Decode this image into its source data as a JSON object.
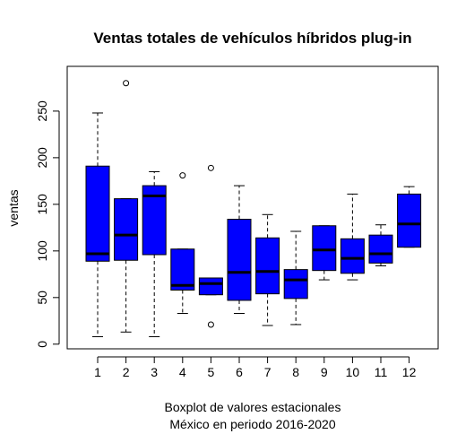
{
  "chart_data": {
    "type": "boxplot",
    "title": "Ventas totales de vehículos híbridos plug-in",
    "ylabel": "ventas",
    "xlabel_lines": [
      "Boxplot de valores estacionales",
      "México en periodo 2016-2020"
    ],
    "categories": [
      "1",
      "2",
      "3",
      "4",
      "5",
      "6",
      "7",
      "8",
      "9",
      "10",
      "11",
      "12"
    ],
    "y_ticks": [
      "0",
      "50",
      "100",
      "150",
      "200",
      "250"
    ],
    "y_tick_values": [
      0,
      50,
      100,
      150,
      200,
      250
    ],
    "ylim": [
      -5,
      298
    ],
    "box_color": "#0000ff",
    "boxes": [
      {
        "lower_whisker": 8,
        "q1": 89,
        "median": 97,
        "q3": 191,
        "upper_whisker": 248,
        "outliers": []
      },
      {
        "lower_whisker": 13,
        "q1": 90,
        "median": 117,
        "q3": 156,
        "upper_whisker": 156,
        "outliers": [
          280
        ]
      },
      {
        "lower_whisker": 8,
        "q1": 96,
        "median": 159,
        "q3": 170,
        "upper_whisker": 185,
        "outliers": []
      },
      {
        "lower_whisker": 33,
        "q1": 58,
        "median": 63,
        "q3": 102,
        "upper_whisker": 102,
        "outliers": [
          181
        ]
      },
      {
        "lower_whisker": 53,
        "q1": 53,
        "median": 65,
        "q3": 71,
        "upper_whisker": 71,
        "outliers": [
          189,
          21
        ]
      },
      {
        "lower_whisker": 33,
        "q1": 47,
        "median": 77,
        "q3": 134,
        "upper_whisker": 170,
        "outliers": []
      },
      {
        "lower_whisker": 20,
        "q1": 54,
        "median": 78,
        "q3": 114,
        "upper_whisker": 139,
        "outliers": []
      },
      {
        "lower_whisker": 21,
        "q1": 49,
        "median": 69,
        "q3": 80,
        "upper_whisker": 121,
        "outliers": []
      },
      {
        "lower_whisker": 69,
        "q1": 79,
        "median": 101,
        "q3": 127,
        "upper_whisker": 127,
        "outliers": []
      },
      {
        "lower_whisker": 69,
        "q1": 76,
        "median": 92,
        "q3": 113,
        "upper_whisker": 161,
        "outliers": []
      },
      {
        "lower_whisker": 84,
        "q1": 87,
        "median": 97,
        "q3": 117,
        "upper_whisker": 128,
        "outliers": []
      },
      {
        "lower_whisker": 104,
        "q1": 104,
        "median": 129,
        "q3": 161,
        "upper_whisker": 169,
        "outliers": []
      }
    ]
  }
}
